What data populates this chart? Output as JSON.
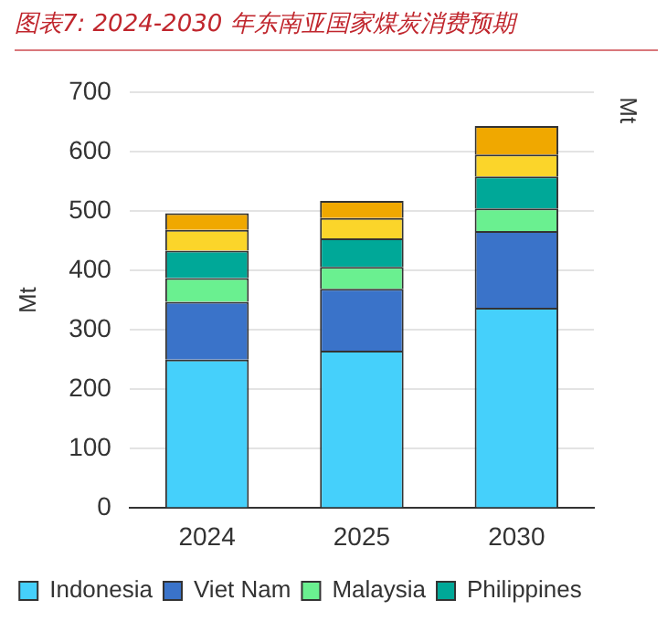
{
  "chart_data": {
    "type": "bar",
    "title": "图表7: 2024-2030 年东南亚国家煤炭消费预期",
    "ylabel": "Mt",
    "annotations": [
      "Mt"
    ],
    "categories": [
      "2024",
      "2025",
      "2030"
    ],
    "stacked": true,
    "series": [
      {
        "name": "Indonesia",
        "color": "#45d0fb",
        "values": [
          250,
          265,
          337
        ]
      },
      {
        "name": "Viet Nam",
        "color": "#3a73c9",
        "values": [
          97,
          104,
          129
        ]
      },
      {
        "name": "Malaysia",
        "color": "#6af090",
        "values": [
          40,
          37,
          38
        ]
      },
      {
        "name": "Philippines",
        "color": "#00a898",
        "values": [
          46,
          48,
          54
        ]
      },
      {
        "color": "#fbd52a",
        "values": [
          35,
          34,
          37
        ]
      },
      {
        "color": "#f0a800",
        "values": [
          28,
          29,
          48
        ]
      }
    ],
    "ylim": [
      0,
      700
    ],
    "yticks": [
      0,
      100,
      200,
      300,
      400,
      500,
      600,
      700
    ],
    "grid": "y",
    "legend": "bottom"
  }
}
